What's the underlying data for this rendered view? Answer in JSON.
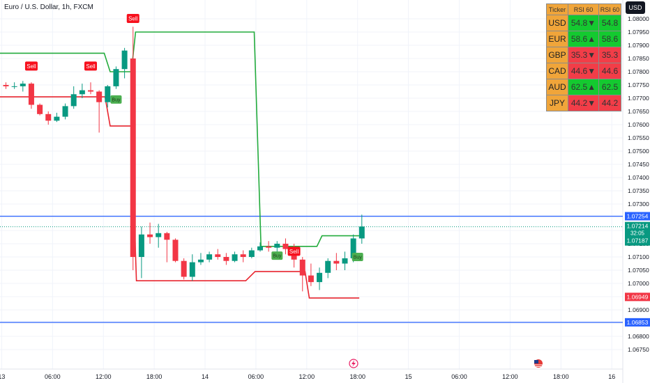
{
  "header": {
    "title": "Euro / U.S. Dollar, 1h, FXCM",
    "currency_button": "USD"
  },
  "rsi_table": {
    "headers": [
      "Ticker",
      "RSI 60",
      "RSI 60"
    ],
    "rows": [
      {
        "ticker": "USD",
        "rsi": "54.8▼",
        "rsi2": "54.8",
        "color": "#14c930"
      },
      {
        "ticker": "EUR",
        "rsi": "58.6▲",
        "rsi2": "58.6",
        "color": "#14c930"
      },
      {
        "ticker": "GBP",
        "rsi": "35.3▼",
        "rsi2": "35.3",
        "color": "#f23d48"
      },
      {
        "ticker": "CAD",
        "rsi": "44.6▼",
        "rsi2": "44.6",
        "color": "#f23d48"
      },
      {
        "ticker": "AUD",
        "rsi": "62.5▲",
        "rsi2": "62.5",
        "color": "#14c930"
      },
      {
        "ticker": "JPY",
        "rsi": "44.2▼",
        "rsi2": "44.2",
        "color": "#f23d48"
      }
    ]
  },
  "chart_data": {
    "type": "candlestick",
    "y_ticks": [
      "1.08000",
      "1.07950",
      "1.07900",
      "1.07850",
      "1.07800",
      "1.07750",
      "1.07700",
      "1.07650",
      "1.07600",
      "1.07550",
      "1.07500",
      "1.07450",
      "1.07400",
      "1.07350",
      "1.07300",
      "1.07250",
      "1.07200",
      "1.07150",
      "1.07100",
      "1.07050",
      "1.07000",
      "1.06950",
      "1.06900",
      "1.06850",
      "1.06800",
      "1.06750"
    ],
    "x_ticks": [
      {
        "label": "13",
        "i": -0.5
      },
      {
        "label": "06:00",
        "i": 5.5
      },
      {
        "label": "12:00",
        "i": 11.5
      },
      {
        "label": "18:00",
        "i": 17.5
      },
      {
        "label": "14",
        "i": 23.5
      },
      {
        "label": "06:00",
        "i": 29.5
      },
      {
        "label": "12:00",
        "i": 35.5
      },
      {
        "label": "18:00",
        "i": 41.5
      },
      {
        "label": "15",
        "i": 47.5
      },
      {
        "label": "06:00",
        "i": 53.5
      },
      {
        "label": "12:00",
        "i": 59.5
      },
      {
        "label": "18:00",
        "i": 65.5
      },
      {
        "label": "16",
        "i": 71.5
      }
    ],
    "candles": [
      {
        "o": 1.0775,
        "h": 1.0776,
        "l": 1.07735,
        "c": 1.07745
      },
      {
        "o": 1.07745,
        "h": 1.0776,
        "l": 1.07735,
        "c": 1.07745
      },
      {
        "o": 1.07745,
        "h": 1.07765,
        "l": 1.07725,
        "c": 1.07755
      },
      {
        "o": 1.07755,
        "h": 1.0776,
        "l": 1.0766,
        "c": 1.07675
      },
      {
        "o": 1.07675,
        "h": 1.0768,
        "l": 1.07635,
        "c": 1.0764
      },
      {
        "o": 1.0764,
        "h": 1.0765,
        "l": 1.076,
        "c": 1.07615
      },
      {
        "o": 1.07615,
        "h": 1.07645,
        "l": 1.0761,
        "c": 1.0763
      },
      {
        "o": 1.0763,
        "h": 1.0768,
        "l": 1.0762,
        "c": 1.0767
      },
      {
        "o": 1.0767,
        "h": 1.07745,
        "l": 1.0766,
        "c": 1.07715
      },
      {
        "o": 1.07715,
        "h": 1.07755,
        "l": 1.077,
        "c": 1.0773
      },
      {
        "o": 1.0773,
        "h": 1.0776,
        "l": 1.07715,
        "c": 1.07725
      },
      {
        "o": 1.07725,
        "h": 1.0773,
        "l": 1.0757,
        "c": 1.07685
      },
      {
        "o": 1.07685,
        "h": 1.0775,
        "l": 1.07665,
        "c": 1.07745
      },
      {
        "o": 1.07745,
        "h": 1.0782,
        "l": 1.07735,
        "c": 1.0781
      },
      {
        "o": 1.0781,
        "h": 1.0789,
        "l": 1.07775,
        "c": 1.0788
      },
      {
        "o": 1.0785,
        "h": 1.0797,
        "l": 1.0705,
        "c": 1.071
      },
      {
        "o": 1.071,
        "h": 1.07215,
        "l": 1.0702,
        "c": 1.07185
      },
      {
        "o": 1.07185,
        "h": 1.0723,
        "l": 1.0715,
        "c": 1.07175
      },
      {
        "o": 1.07175,
        "h": 1.07225,
        "l": 1.07135,
        "c": 1.0719
      },
      {
        "o": 1.0719,
        "h": 1.07195,
        "l": 1.0708,
        "c": 1.07165
      },
      {
        "o": 1.07165,
        "h": 1.0717,
        "l": 1.0708,
        "c": 1.07085
      },
      {
        "o": 1.07085,
        "h": 1.07095,
        "l": 1.07015,
        "c": 1.07025
      },
      {
        "o": 1.07025,
        "h": 1.0711,
        "l": 1.0701,
        "c": 1.0708
      },
      {
        "o": 1.0708,
        "h": 1.07115,
        "l": 1.0707,
        "c": 1.0709
      },
      {
        "o": 1.0709,
        "h": 1.0712,
        "l": 1.0708,
        "c": 1.0711
      },
      {
        "o": 1.0711,
        "h": 1.0713,
        "l": 1.0709,
        "c": 1.071
      },
      {
        "o": 1.071,
        "h": 1.07115,
        "l": 1.0707,
        "c": 1.07085
      },
      {
        "o": 1.07085,
        "h": 1.0712,
        "l": 1.0708,
        "c": 1.0711
      },
      {
        "o": 1.0711,
        "h": 1.07125,
        "l": 1.0708,
        "c": 1.071
      },
      {
        "o": 1.071,
        "h": 1.07135,
        "l": 1.07095,
        "c": 1.07125
      },
      {
        "o": 1.07125,
        "h": 1.07155,
        "l": 1.0712,
        "c": 1.0714
      },
      {
        "o": 1.0714,
        "h": 1.0716,
        "l": 1.0712,
        "c": 1.07135
      },
      {
        "o": 1.07135,
        "h": 1.0716,
        "l": 1.0712,
        "c": 1.0715
      },
      {
        "o": 1.0715,
        "h": 1.0717,
        "l": 1.0711,
        "c": 1.0713
      },
      {
        "o": 1.0713,
        "h": 1.0715,
        "l": 1.0706,
        "c": 1.0709
      },
      {
        "o": 1.0709,
        "h": 1.071,
        "l": 1.0697,
        "c": 1.0703
      },
      {
        "o": 1.0703,
        "h": 1.07075,
        "l": 1.0699,
        "c": 1.07005
      },
      {
        "o": 1.07005,
        "h": 1.0706,
        "l": 1.06975,
        "c": 1.0704
      },
      {
        "o": 1.0704,
        "h": 1.07095,
        "l": 1.0702,
        "c": 1.07085
      },
      {
        "o": 1.07085,
        "h": 1.07115,
        "l": 1.0705,
        "c": 1.07075
      },
      {
        "o": 1.07075,
        "h": 1.0712,
        "l": 1.0705,
        "c": 1.07095
      },
      {
        "o": 1.07095,
        "h": 1.07185,
        "l": 1.0708,
        "c": 1.0717
      },
      {
        "o": 1.0717,
        "h": 1.0726,
        "l": 1.0715,
        "c": 1.07215
      }
    ],
    "upper_line": [
      [
        -5,
        1.0787
      ],
      [
        11.6,
        1.0787
      ],
      [
        12.3,
        1.078
      ],
      [
        14.8,
        1.078
      ],
      [
        15.3,
        1.0795
      ],
      [
        29.3,
        1.0795
      ],
      [
        30.1,
        1.0714
      ],
      [
        36.7,
        1.0714
      ],
      [
        37.3,
        1.0718
      ],
      [
        41.7,
        1.0718
      ]
    ],
    "lower_line": [
      [
        -5,
        1.07705
      ],
      [
        11.7,
        1.07705
      ],
      [
        12.3,
        1.07595
      ],
      [
        14.8,
        1.07595
      ],
      [
        15.4,
        1.0701
      ],
      [
        28.3,
        1.0701
      ],
      [
        29.4,
        1.07045
      ],
      [
        35.3,
        1.07045
      ],
      [
        35.8,
        1.06945
      ],
      [
        41.7,
        1.06945
      ]
    ],
    "signals": [
      {
        "type": "sell",
        "label": "Sell",
        "i": 3,
        "price": 1.0782
      },
      {
        "type": "sell",
        "label": "Sell",
        "i": 10,
        "price": 1.0782
      },
      {
        "type": "sell",
        "label": "Sell",
        "i": 15,
        "price": 1.08
      },
      {
        "type": "sell",
        "label": "Sell",
        "i": 34,
        "price": 1.0712
      },
      {
        "type": "buy",
        "label": "Buy",
        "i": 13,
        "price": 1.07695
      },
      {
        "type": "buy",
        "label": "Buy",
        "i": 32,
        "price": 1.07105
      },
      {
        "type": "buy",
        "label": "Buy",
        "i": 41.5,
        "price": 1.071
      }
    ],
    "hlines": [
      {
        "price": 1.07254,
        "label": "1.07254",
        "color": "#2962ff"
      },
      {
        "price": 1.06853,
        "label": "1.06853",
        "color": "#2962ff"
      }
    ],
    "price_labels": [
      {
        "price": 1.06949,
        "label": "1.06949",
        "color": "#f23645"
      }
    ],
    "current": {
      "price": 1.07214,
      "label": "1.07214",
      "countdown": "32:05",
      "sub": "1.07187",
      "color": "#089981"
    },
    "up_color": "#089981",
    "down_color": "#f23645",
    "upper_line_color": "#22ab3c",
    "lower_line_color": "#e8252f"
  }
}
